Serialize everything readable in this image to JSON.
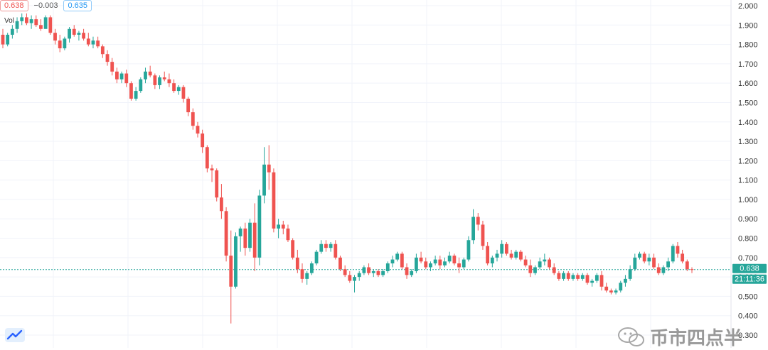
{
  "header": {
    "price_box": "0.638",
    "change": "−0.003",
    "price_box2": "0.635",
    "vol_label": "Vol"
  },
  "price_label": "0.638",
  "time_label": "21:11:36",
  "watermark": "币市四点半",
  "colors": {
    "up": "#26a69a",
    "down": "#ef5350",
    "grid": "#f0f3fa",
    "axis_text": "#333333",
    "price_line": "#26a69a"
  },
  "chart_data": {
    "type": "candlestick",
    "y_axis": {
      "min": 0.3,
      "max": 2.0,
      "ticks": [
        "2.000",
        "1.900",
        "1.800",
        "1.700",
        "1.600",
        "1.500",
        "1.400",
        "1.300",
        "1.200",
        "1.100",
        "1.000",
        "0.900",
        "0.800",
        "0.700",
        "0.600",
        "0.500",
        "0.400",
        "0.300"
      ],
      "position": "right"
    },
    "last_price": 0.638,
    "candles": [
      [
        1.85,
        1.88,
        1.78,
        1.8
      ],
      [
        1.8,
        1.86,
        1.79,
        1.85
      ],
      [
        1.85,
        1.9,
        1.83,
        1.88
      ],
      [
        1.88,
        1.94,
        1.86,
        1.92
      ],
      [
        1.92,
        1.96,
        1.9,
        1.94
      ],
      [
        1.94,
        1.96,
        1.9,
        1.91
      ],
      [
        1.91,
        1.95,
        1.88,
        1.93
      ],
      [
        1.93,
        1.95,
        1.89,
        1.9
      ],
      [
        1.9,
        1.93,
        1.87,
        1.88
      ],
      [
        1.88,
        1.95,
        1.88,
        1.94
      ],
      [
        1.94,
        1.95,
        1.85,
        1.86
      ],
      [
        1.86,
        1.88,
        1.8,
        1.82
      ],
      [
        1.82,
        1.85,
        1.76,
        1.78
      ],
      [
        1.78,
        1.84,
        1.77,
        1.83
      ],
      [
        1.83,
        1.89,
        1.81,
        1.88
      ],
      [
        1.88,
        1.9,
        1.84,
        1.85
      ],
      [
        1.85,
        1.87,
        1.82,
        1.86
      ],
      [
        1.86,
        1.88,
        1.82,
        1.83
      ],
      [
        1.83,
        1.86,
        1.79,
        1.8
      ],
      [
        1.8,
        1.84,
        1.78,
        1.82
      ],
      [
        1.82,
        1.84,
        1.78,
        1.79
      ],
      [
        1.79,
        1.8,
        1.73,
        1.75
      ],
      [
        1.75,
        1.77,
        1.69,
        1.71
      ],
      [
        1.71,
        1.73,
        1.64,
        1.66
      ],
      [
        1.66,
        1.68,
        1.6,
        1.62
      ],
      [
        1.62,
        1.66,
        1.6,
        1.65
      ],
      [
        1.65,
        1.67,
        1.58,
        1.6
      ],
      [
        1.6,
        1.61,
        1.51,
        1.52
      ],
      [
        1.52,
        1.58,
        1.51,
        1.56
      ],
      [
        1.56,
        1.63,
        1.55,
        1.62
      ],
      [
        1.62,
        1.68,
        1.6,
        1.66
      ],
      [
        1.66,
        1.69,
        1.63,
        1.64
      ],
      [
        1.64,
        1.65,
        1.57,
        1.59
      ],
      [
        1.59,
        1.64,
        1.57,
        1.63
      ],
      [
        1.63,
        1.66,
        1.61,
        1.62
      ],
      [
        1.62,
        1.65,
        1.58,
        1.6
      ],
      [
        1.6,
        1.62,
        1.55,
        1.56
      ],
      [
        1.56,
        1.59,
        1.54,
        1.58
      ],
      [
        1.58,
        1.59,
        1.5,
        1.52
      ],
      [
        1.52,
        1.53,
        1.43,
        1.45
      ],
      [
        1.45,
        1.47,
        1.36,
        1.38
      ],
      [
        1.38,
        1.4,
        1.32,
        1.34
      ],
      [
        1.34,
        1.36,
        1.24,
        1.27
      ],
      [
        1.27,
        1.28,
        1.14,
        1.16
      ],
      [
        1.16,
        1.18,
        1.09,
        1.15
      ],
      [
        1.15,
        1.16,
        0.99,
        1.01
      ],
      [
        1.01,
        1.08,
        0.9,
        0.94
      ],
      [
        0.94,
        0.96,
        0.68,
        0.71
      ],
      [
        0.71,
        0.84,
        0.36,
        0.55
      ],
      [
        0.55,
        0.83,
        0.54,
        0.81
      ],
      [
        0.81,
        0.86,
        0.73,
        0.85
      ],
      [
        0.85,
        0.88,
        0.71,
        0.75
      ],
      [
        0.75,
        0.9,
        0.73,
        0.88
      ],
      [
        0.88,
        0.98,
        0.63,
        0.7
      ],
      [
        0.7,
        1.05,
        0.66,
        1.02
      ],
      [
        1.02,
        1.27,
        0.98,
        1.18
      ],
      [
        1.18,
        1.28,
        1.05,
        1.14
      ],
      [
        1.14,
        1.16,
        0.83,
        0.85
      ],
      [
        0.85,
        0.9,
        0.8,
        0.87
      ],
      [
        0.87,
        0.89,
        0.82,
        0.85
      ],
      [
        0.85,
        0.87,
        0.78,
        0.79
      ],
      [
        0.79,
        0.8,
        0.69,
        0.7
      ],
      [
        0.7,
        0.74,
        0.62,
        0.64
      ],
      [
        0.64,
        0.67,
        0.57,
        0.59
      ],
      [
        0.59,
        0.63,
        0.56,
        0.62
      ],
      [
        0.62,
        0.68,
        0.61,
        0.67
      ],
      [
        0.67,
        0.74,
        0.66,
        0.73
      ],
      [
        0.73,
        0.79,
        0.72,
        0.77
      ],
      [
        0.77,
        0.79,
        0.73,
        0.75
      ],
      [
        0.75,
        0.78,
        0.73,
        0.77
      ],
      [
        0.77,
        0.79,
        0.69,
        0.7
      ],
      [
        0.7,
        0.71,
        0.63,
        0.64
      ],
      [
        0.64,
        0.66,
        0.6,
        0.61
      ],
      [
        0.61,
        0.63,
        0.57,
        0.58
      ],
      [
        0.58,
        0.61,
        0.52,
        0.6
      ],
      [
        0.6,
        0.63,
        0.58,
        0.62
      ],
      [
        0.62,
        0.66,
        0.61,
        0.65
      ],
      [
        0.65,
        0.67,
        0.61,
        0.62
      ],
      [
        0.62,
        0.64,
        0.6,
        0.63
      ],
      [
        0.63,
        0.64,
        0.6,
        0.61
      ],
      [
        0.61,
        0.64,
        0.6,
        0.63
      ],
      [
        0.63,
        0.68,
        0.62,
        0.67
      ],
      [
        0.67,
        0.71,
        0.65,
        0.69
      ],
      [
        0.69,
        0.73,
        0.68,
        0.72
      ],
      [
        0.72,
        0.73,
        0.64,
        0.65
      ],
      [
        0.65,
        0.67,
        0.59,
        0.61
      ],
      [
        0.61,
        0.64,
        0.6,
        0.63
      ],
      [
        0.63,
        0.72,
        0.62,
        0.7
      ],
      [
        0.7,
        0.73,
        0.67,
        0.68
      ],
      [
        0.68,
        0.7,
        0.64,
        0.65
      ],
      [
        0.65,
        0.68,
        0.63,
        0.67
      ],
      [
        0.67,
        0.71,
        0.66,
        0.69
      ],
      [
        0.69,
        0.71,
        0.64,
        0.66
      ],
      [
        0.66,
        0.7,
        0.65,
        0.68
      ],
      [
        0.68,
        0.73,
        0.67,
        0.71
      ],
      [
        0.71,
        0.72,
        0.66,
        0.67
      ],
      [
        0.67,
        0.7,
        0.62,
        0.65
      ],
      [
        0.65,
        0.7,
        0.64,
        0.69
      ],
      [
        0.69,
        0.81,
        0.68,
        0.79
      ],
      [
        0.79,
        0.95,
        0.77,
        0.91
      ],
      [
        0.91,
        0.93,
        0.84,
        0.87
      ],
      [
        0.87,
        0.89,
        0.74,
        0.76
      ],
      [
        0.76,
        0.78,
        0.66,
        0.67
      ],
      [
        0.67,
        0.71,
        0.65,
        0.7
      ],
      [
        0.7,
        0.74,
        0.68,
        0.72
      ],
      [
        0.72,
        0.79,
        0.7,
        0.77
      ],
      [
        0.77,
        0.78,
        0.71,
        0.72
      ],
      [
        0.72,
        0.74,
        0.69,
        0.7
      ],
      [
        0.7,
        0.74,
        0.69,
        0.73
      ],
      [
        0.73,
        0.74,
        0.68,
        0.69
      ],
      [
        0.69,
        0.71,
        0.65,
        0.66
      ],
      [
        0.66,
        0.69,
        0.6,
        0.62
      ],
      [
        0.62,
        0.66,
        0.61,
        0.65
      ],
      [
        0.65,
        0.7,
        0.64,
        0.68
      ],
      [
        0.68,
        0.72,
        0.66,
        0.69
      ],
      [
        0.69,
        0.7,
        0.64,
        0.65
      ],
      [
        0.65,
        0.67,
        0.61,
        0.62
      ],
      [
        0.62,
        0.63,
        0.58,
        0.59
      ],
      [
        0.59,
        0.63,
        0.58,
        0.62
      ],
      [
        0.62,
        0.63,
        0.58,
        0.59
      ],
      [
        0.59,
        0.62,
        0.58,
        0.61
      ],
      [
        0.61,
        0.62,
        0.58,
        0.59
      ],
      [
        0.59,
        0.62,
        0.58,
        0.61
      ],
      [
        0.61,
        0.62,
        0.56,
        0.57
      ],
      [
        0.57,
        0.59,
        0.55,
        0.58
      ],
      [
        0.58,
        0.62,
        0.57,
        0.61
      ],
      [
        0.61,
        0.63,
        0.53,
        0.55
      ],
      [
        0.55,
        0.57,
        0.52,
        0.53
      ],
      [
        0.53,
        0.54,
        0.51,
        0.52
      ],
      [
        0.52,
        0.54,
        0.51,
        0.53
      ],
      [
        0.53,
        0.58,
        0.52,
        0.57
      ],
      [
        0.57,
        0.61,
        0.55,
        0.59
      ],
      [
        0.59,
        0.66,
        0.58,
        0.64
      ],
      [
        0.64,
        0.72,
        0.63,
        0.7
      ],
      [
        0.7,
        0.73,
        0.69,
        0.72
      ],
      [
        0.72,
        0.73,
        0.67,
        0.68
      ],
      [
        0.68,
        0.72,
        0.66,
        0.7
      ],
      [
        0.7,
        0.72,
        0.64,
        0.65
      ],
      [
        0.65,
        0.67,
        0.61,
        0.62
      ],
      [
        0.62,
        0.66,
        0.61,
        0.65
      ],
      [
        0.65,
        0.7,
        0.63,
        0.68
      ],
      [
        0.68,
        0.77,
        0.67,
        0.76
      ],
      [
        0.76,
        0.78,
        0.7,
        0.72
      ],
      [
        0.72,
        0.74,
        0.67,
        0.68
      ],
      [
        0.68,
        0.69,
        0.63,
        0.64
      ],
      [
        0.64,
        0.65,
        0.62,
        0.638
      ]
    ]
  }
}
